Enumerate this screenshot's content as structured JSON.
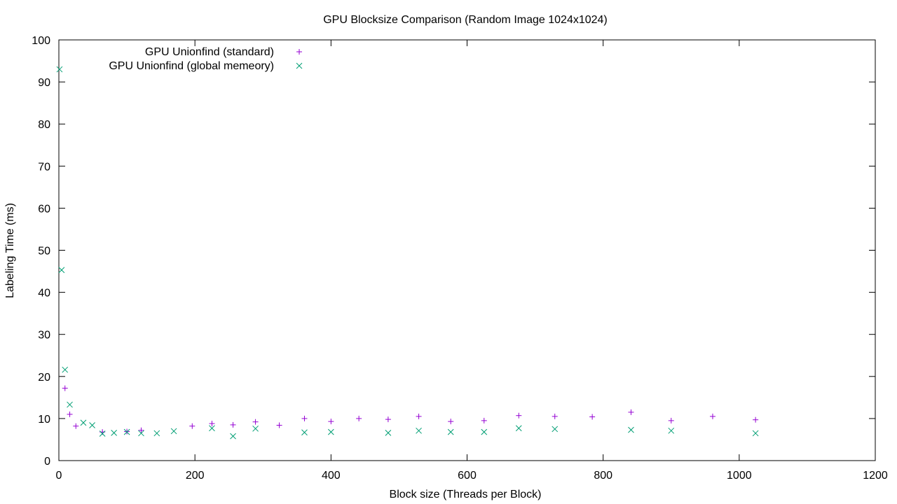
{
  "chart_data": {
    "type": "scatter",
    "title": "GPU Blocksize Comparison (Random Image 1024x1024)",
    "xlabel": "Block size (Threads per Block)",
    "ylabel": "Labeling Time (ms)",
    "xlim": [
      0,
      1200
    ],
    "ylim": [
      0,
      100
    ],
    "xticks": [
      0,
      200,
      400,
      600,
      800,
      1000,
      1200
    ],
    "yticks": [
      0,
      10,
      20,
      30,
      40,
      50,
      60,
      70,
      80,
      90,
      100
    ],
    "grid": false,
    "legend_position": "top-left",
    "series": [
      {
        "name": "GPU Unionfind (standard)",
        "marker": "plus",
        "color": "#9400d3",
        "points": [
          [
            9,
            17.2
          ],
          [
            16,
            11.0
          ],
          [
            25,
            8.2
          ],
          [
            64,
            6.8
          ],
          [
            100,
            6.9
          ],
          [
            121,
            7.2
          ],
          [
            196,
            8.2
          ],
          [
            225,
            8.8
          ],
          [
            256,
            8.5
          ],
          [
            289,
            9.2
          ],
          [
            324,
            8.4
          ],
          [
            361,
            10.0
          ],
          [
            400,
            9.3
          ],
          [
            441,
            10.0
          ],
          [
            484,
            9.8
          ],
          [
            529,
            10.5
          ],
          [
            576,
            9.3
          ],
          [
            625,
            9.5
          ],
          [
            676,
            10.7
          ],
          [
            729,
            10.5
          ],
          [
            784,
            10.4
          ],
          [
            841,
            11.5
          ],
          [
            900,
            9.5
          ],
          [
            961,
            10.5
          ],
          [
            1024,
            9.7
          ]
        ]
      },
      {
        "name": "GPU Unionfind (global memeory)",
        "marker": "cross",
        "color": "#009e73",
        "points": [
          [
            1,
            93.0
          ],
          [
            4,
            45.3
          ],
          [
            9,
            21.6
          ],
          [
            16,
            13.3
          ],
          [
            36,
            9.0
          ],
          [
            49,
            8.4
          ],
          [
            64,
            6.4
          ],
          [
            81,
            6.6
          ],
          [
            100,
            6.8
          ],
          [
            121,
            6.5
          ],
          [
            144,
            6.5
          ],
          [
            169,
            7.0
          ],
          [
            225,
            7.7
          ],
          [
            256,
            5.8
          ],
          [
            289,
            7.6
          ],
          [
            361,
            6.7
          ],
          [
            400,
            6.8
          ],
          [
            484,
            6.6
          ],
          [
            529,
            7.1
          ],
          [
            576,
            6.8
          ],
          [
            625,
            6.8
          ],
          [
            676,
            7.7
          ],
          [
            729,
            7.5
          ],
          [
            841,
            7.3
          ],
          [
            900,
            7.1
          ],
          [
            1024,
            6.5
          ]
        ]
      }
    ]
  }
}
